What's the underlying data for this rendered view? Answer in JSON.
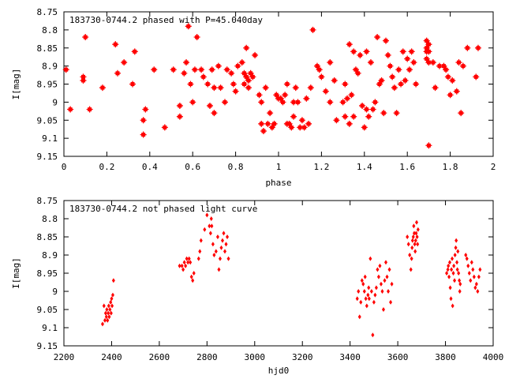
{
  "colors": {
    "points": "#ff0000",
    "axes": "#000000",
    "background": "#ffffff"
  },
  "chart_data": [
    {
      "type": "scatter",
      "title": "183730-0744.2 phased with P=45.040day",
      "xlabel": "phase",
      "ylabel": "I[mag]",
      "xlim": [
        0,
        2
      ],
      "ylim": [
        9.15,
        8.75
      ],
      "y_inverted": true,
      "grid": false,
      "x_ticks": [
        "0",
        "0.2",
        "0.4",
        "0.6",
        "0.8",
        "1",
        "1.2",
        "1.4",
        "1.6",
        "1.8",
        "2"
      ],
      "y_ticks": [
        "8.75",
        "8.8",
        "8.85",
        "8.9",
        "8.95",
        "9",
        "9.05",
        "9.1",
        "9.15"
      ],
      "marker": "star",
      "points": [
        [
          0.01,
          8.91
        ],
        [
          0.03,
          9.02
        ],
        [
          0.09,
          8.93
        ],
        [
          0.09,
          8.94
        ],
        [
          0.1,
          8.82
        ],
        [
          0.12,
          9.02
        ],
        [
          0.18,
          8.96
        ],
        [
          0.24,
          8.84
        ],
        [
          0.25,
          8.92
        ],
        [
          0.28,
          8.89
        ],
        [
          0.32,
          8.95
        ],
        [
          0.33,
          8.86
        ],
        [
          0.37,
          9.05
        ],
        [
          0.37,
          9.09
        ],
        [
          0.38,
          9.02
        ],
        [
          0.42,
          8.91
        ],
        [
          0.47,
          9.07
        ],
        [
          0.51,
          8.91
        ],
        [
          0.54,
          9.01
        ],
        [
          0.54,
          9.04
        ],
        [
          0.56,
          8.92
        ],
        [
          0.57,
          8.89
        ],
        [
          0.58,
          8.79
        ],
        [
          0.59,
          8.95
        ],
        [
          0.6,
          9.0
        ],
        [
          0.61,
          8.91
        ],
        [
          0.62,
          8.82
        ],
        [
          0.64,
          8.91
        ],
        [
          0.65,
          8.93
        ],
        [
          0.67,
          8.95
        ],
        [
          0.68,
          9.01
        ],
        [
          0.69,
          8.91
        ],
        [
          0.7,
          9.03
        ],
        [
          0.7,
          8.96
        ],
        [
          0.72,
          8.9
        ],
        [
          0.73,
          8.96
        ],
        [
          0.75,
          9.0
        ],
        [
          0.76,
          8.91
        ],
        [
          0.78,
          8.92
        ],
        [
          0.79,
          8.95
        ],
        [
          0.8,
          8.97
        ],
        [
          0.81,
          8.9
        ],
        [
          0.83,
          8.89
        ],
        [
          0.84,
          8.92
        ],
        [
          0.84,
          8.95
        ],
        [
          0.85,
          8.85
        ],
        [
          0.85,
          8.93
        ],
        [
          0.86,
          8.94
        ],
        [
          0.86,
          8.96
        ],
        [
          0.87,
          8.92
        ],
        [
          0.88,
          8.93
        ],
        [
          0.89,
          8.87
        ],
        [
          0.91,
          8.98
        ],
        [
          0.92,
          9.0
        ],
        [
          0.92,
          9.06
        ],
        [
          0.93,
          9.08
        ],
        [
          0.94,
          8.96
        ],
        [
          0.95,
          9.06
        ],
        [
          0.96,
          9.03
        ],
        [
          0.97,
          9.07
        ],
        [
          0.98,
          9.06
        ],
        [
          0.99,
          8.98
        ],
        [
          1.0,
          8.99
        ],
        [
          1.01,
          8.99
        ],
        [
          1.02,
          9.0
        ],
        [
          1.03,
          8.98
        ],
        [
          1.04,
          8.95
        ],
        [
          1.04,
          9.06
        ],
        [
          1.05,
          9.06
        ],
        [
          1.06,
          9.07
        ],
        [
          1.07,
          9.0
        ],
        [
          1.07,
          9.04
        ],
        [
          1.08,
          8.96
        ],
        [
          1.09,
          9.0
        ],
        [
          1.1,
          9.07
        ],
        [
          1.11,
          9.05
        ],
        [
          1.12,
          9.07
        ],
        [
          1.13,
          8.99
        ],
        [
          1.14,
          9.06
        ],
        [
          1.15,
          8.96
        ],
        [
          1.16,
          8.8
        ],
        [
          1.18,
          8.9
        ],
        [
          1.19,
          8.91
        ],
        [
          1.2,
          8.93
        ],
        [
          1.22,
          8.97
        ],
        [
          1.24,
          8.89
        ],
        [
          1.24,
          9.0
        ],
        [
          1.26,
          8.94
        ],
        [
          1.27,
          9.05
        ],
        [
          1.3,
          9.0
        ],
        [
          1.31,
          8.95
        ],
        [
          1.31,
          9.04
        ],
        [
          1.32,
          8.99
        ],
        [
          1.33,
          8.84
        ],
        [
          1.33,
          9.06
        ],
        [
          1.34,
          8.98
        ],
        [
          1.35,
          8.86
        ],
        [
          1.35,
          9.04
        ],
        [
          1.36,
          8.91
        ],
        [
          1.37,
          8.92
        ],
        [
          1.38,
          8.87
        ],
        [
          1.39,
          9.01
        ],
        [
          1.4,
          9.07
        ],
        [
          1.41,
          8.86
        ],
        [
          1.41,
          9.02
        ],
        [
          1.42,
          9.04
        ],
        [
          1.43,
          8.89
        ],
        [
          1.44,
          9.02
        ],
        [
          1.45,
          9.0
        ],
        [
          1.46,
          8.82
        ],
        [
          1.47,
          8.95
        ],
        [
          1.48,
          8.94
        ],
        [
          1.49,
          9.03
        ],
        [
          1.5,
          8.83
        ],
        [
          1.51,
          8.87
        ],
        [
          1.52,
          8.9
        ],
        [
          1.53,
          8.93
        ],
        [
          1.54,
          8.96
        ],
        [
          1.55,
          9.03
        ],
        [
          1.56,
          8.91
        ],
        [
          1.57,
          8.95
        ],
        [
          1.58,
          8.86
        ],
        [
          1.59,
          8.94
        ],
        [
          1.6,
          8.88
        ],
        [
          1.61,
          8.91
        ],
        [
          1.62,
          8.86
        ],
        [
          1.63,
          8.89
        ],
        [
          1.64,
          8.95
        ],
        [
          1.69,
          8.83
        ],
        [
          1.69,
          8.85
        ],
        [
          1.69,
          8.86
        ],
        [
          1.69,
          8.88
        ],
        [
          1.7,
          8.84
        ],
        [
          1.7,
          8.86
        ],
        [
          1.7,
          8.89
        ],
        [
          1.7,
          9.12
        ],
        [
          1.72,
          8.89
        ],
        [
          1.73,
          8.96
        ],
        [
          1.75,
          8.9
        ],
        [
          1.77,
          8.9
        ],
        [
          1.78,
          8.91
        ],
        [
          1.79,
          8.93
        ],
        [
          1.8,
          8.98
        ],
        [
          1.81,
          8.94
        ],
        [
          1.83,
          8.97
        ],
        [
          1.84,
          8.89
        ],
        [
          1.85,
          9.03
        ],
        [
          1.86,
          8.9
        ],
        [
          1.88,
          8.85
        ],
        [
          1.92,
          8.93
        ],
        [
          1.93,
          8.85
        ]
      ]
    },
    {
      "type": "scatter",
      "title": "183730-0744.2 not phased light curve",
      "xlabel": "hjd0",
      "ylabel": "I[mag]",
      "xlim": [
        2200,
        4000
      ],
      "ylim": [
        9.15,
        8.75
      ],
      "y_inverted": true,
      "grid": false,
      "x_ticks": [
        "2200",
        "2400",
        "2600",
        "2800",
        "3000",
        "3200",
        "3400",
        "3600",
        "3800",
        "4000"
      ],
      "y_ticks": [
        "8.75",
        "8.8",
        "8.85",
        "8.9",
        "8.95",
        "9",
        "9.05",
        "9.1",
        "9.15"
      ],
      "marker": "diamond",
      "points": [
        [
          2362,
          9.09
        ],
        [
          2368,
          9.04
        ],
        [
          2372,
          9.08
        ],
        [
          2375,
          9.06
        ],
        [
          2378,
          9.07
        ],
        [
          2380,
          9.05
        ],
        [
          2383,
          9.08
        ],
        [
          2386,
          9.06
        ],
        [
          2388,
          9.04
        ],
        [
          2390,
          9.07
        ],
        [
          2393,
          9.05
        ],
        [
          2396,
          9.03
        ],
        [
          2398,
          9.06
        ],
        [
          2400,
          9.02
        ],
        [
          2402,
          9.04
        ],
        [
          2405,
          9.01
        ],
        [
          2408,
          8.97
        ],
        [
          2685,
          8.93
        ],
        [
          2695,
          8.93
        ],
        [
          2700,
          8.94
        ],
        [
          2705,
          8.92
        ],
        [
          2710,
          8.93
        ],
        [
          2715,
          8.91
        ],
        [
          2720,
          8.92
        ],
        [
          2725,
          8.91
        ],
        [
          2730,
          8.92
        ],
        [
          2735,
          8.96
        ],
        [
          2740,
          8.97
        ],
        [
          2745,
          8.95
        ],
        [
          2765,
          8.91
        ],
        [
          2770,
          8.89
        ],
        [
          2775,
          8.86
        ],
        [
          2790,
          8.83
        ],
        [
          2800,
          8.79
        ],
        [
          2810,
          8.82
        ],
        [
          2815,
          8.84
        ],
        [
          2818,
          8.8
        ],
        [
          2820,
          8.82
        ],
        [
          2825,
          8.87
        ],
        [
          2830,
          8.9
        ],
        [
          2838,
          8.89
        ],
        [
          2845,
          8.85
        ],
        [
          2850,
          8.94
        ],
        [
          2855,
          8.91
        ],
        [
          2860,
          8.88
        ],
        [
          2865,
          8.86
        ],
        [
          2870,
          8.84
        ],
        [
          2875,
          8.89
        ],
        [
          2880,
          8.87
        ],
        [
          2885,
          8.85
        ],
        [
          2890,
          8.91
        ],
        [
          3430,
          9.02
        ],
        [
          3435,
          9.0
        ],
        [
          3440,
          9.07
        ],
        [
          3445,
          9.03
        ],
        [
          3450,
          8.97
        ],
        [
          3455,
          8.98
        ],
        [
          3460,
          9.0
        ],
        [
          3463,
          8.96
        ],
        [
          3466,
          9.02
        ],
        [
          3470,
          9.04
        ],
        [
          3475,
          9.01
        ],
        [
          3478,
          8.99
        ],
        [
          3480,
          9.02
        ],
        [
          3485,
          8.91
        ],
        [
          3490,
          9.0
        ],
        [
          3495,
          9.12
        ],
        [
          3500,
          9.03
        ],
        [
          3505,
          9.01
        ],
        [
          3510,
          8.99
        ],
        [
          3515,
          8.94
        ],
        [
          3520,
          8.96
        ],
        [
          3525,
          8.93
        ],
        [
          3530,
          8.98
        ],
        [
          3535,
          9.0
        ],
        [
          3540,
          9.05
        ],
        [
          3545,
          8.97
        ],
        [
          3550,
          8.92
        ],
        [
          3555,
          8.96
        ],
        [
          3560,
          9.0
        ],
        [
          3565,
          8.94
        ],
        [
          3570,
          9.03
        ],
        [
          3575,
          8.98
        ],
        [
          3640,
          8.85
        ],
        [
          3645,
          8.87
        ],
        [
          3650,
          8.9
        ],
        [
          3655,
          8.94
        ],
        [
          3658,
          8.91
        ],
        [
          3660,
          8.88
        ],
        [
          3662,
          8.86
        ],
        [
          3665,
          8.85
        ],
        [
          3667,
          8.82
        ],
        [
          3669,
          8.84
        ],
        [
          3671,
          8.87
        ],
        [
          3673,
          8.89
        ],
        [
          3675,
          8.86
        ],
        [
          3677,
          8.84
        ],
        [
          3679,
          8.81
        ],
        [
          3681,
          8.85
        ],
        [
          3683,
          8.87
        ],
        [
          3685,
          8.83
        ],
        [
          3805,
          8.95
        ],
        [
          3810,
          8.94
        ],
        [
          3812,
          8.93
        ],
        [
          3815,
          8.96
        ],
        [
          3818,
          8.92
        ],
        [
          3820,
          8.99
        ],
        [
          3823,
          9.02
        ],
        [
          3825,
          8.94
        ],
        [
          3828,
          8.91
        ],
        [
          3830,
          9.04
        ],
        [
          3833,
          8.95
        ],
        [
          3835,
          8.93
        ],
        [
          3838,
          8.97
        ],
        [
          3840,
          8.9
        ],
        [
          3843,
          8.88
        ],
        [
          3845,
          8.86
        ],
        [
          3848,
          8.92
        ],
        [
          3850,
          8.94
        ],
        [
          3852,
          8.89
        ],
        [
          3855,
          8.95
        ],
        [
          3858,
          8.97
        ],
        [
          3860,
          9.0
        ],
        [
          3862,
          8.98
        ],
        [
          3885,
          8.9
        ],
        [
          3890,
          8.91
        ],
        [
          3895,
          8.93
        ],
        [
          3900,
          8.95
        ],
        [
          3905,
          8.97
        ],
        [
          3910,
          8.92
        ],
        [
          3915,
          8.94
        ],
        [
          3920,
          8.96
        ],
        [
          3925,
          8.99
        ],
        [
          3930,
          8.98
        ],
        [
          3935,
          9.0
        ],
        [
          3940,
          8.96
        ],
        [
          3945,
          8.94
        ]
      ]
    }
  ]
}
